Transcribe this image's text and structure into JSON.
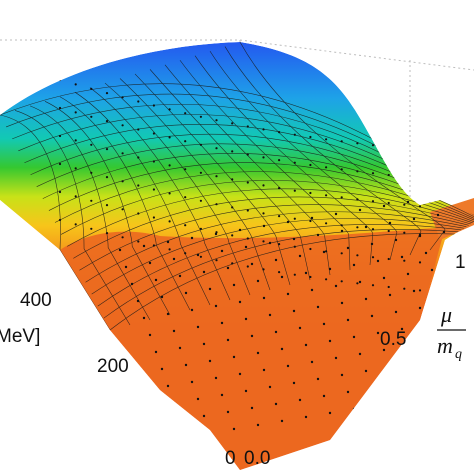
{
  "chart_data": {
    "type": "surface",
    "title": "",
    "x_axis": {
      "label_num": "μ",
      "label_den": "m",
      "label_den_sub": "q",
      "ticks": [
        "0.0",
        "0.5",
        "1"
      ],
      "range": [
        0,
        1.1
      ]
    },
    "y_axis": {
      "label": "MeV]",
      "ticks": [
        "0",
        "200",
        "400"
      ],
      "range": [
        0,
        600
      ]
    },
    "z_axis": {
      "label": "",
      "range": [
        0,
        1
      ]
    },
    "colormap": [
      "#e8501a",
      "#f3801c",
      "#f7c51a",
      "#c8e218",
      "#35c830",
      "#12c9b4",
      "#1ea2e8",
      "#2456f0"
    ],
    "surface": {
      "description_values": "order parameter drops from high (blue) at low T, low mu to low (orange) at high T or high mu",
      "samples_mu": [
        0.0,
        0.2,
        0.4,
        0.6,
        0.8,
        1.0,
        1.1
      ],
      "samples_T": [
        0,
        100,
        200,
        300,
        400,
        500,
        600
      ],
      "z": [
        [
          1.0,
          1.0,
          1.0,
          1.0,
          1.0,
          0.98,
          0.1
        ],
        [
          1.0,
          1.0,
          1.0,
          0.99,
          0.97,
          0.85,
          0.08
        ],
        [
          0.97,
          0.97,
          0.96,
          0.94,
          0.88,
          0.55,
          0.06
        ],
        [
          0.6,
          0.58,
          0.52,
          0.45,
          0.35,
          0.2,
          0.05
        ],
        [
          0.18,
          0.17,
          0.16,
          0.14,
          0.12,
          0.1,
          0.04
        ],
        [
          0.09,
          0.09,
          0.08,
          0.08,
          0.07,
          0.06,
          0.03
        ],
        [
          0.06,
          0.06,
          0.05,
          0.05,
          0.05,
          0.04,
          0.03
        ]
      ]
    }
  }
}
